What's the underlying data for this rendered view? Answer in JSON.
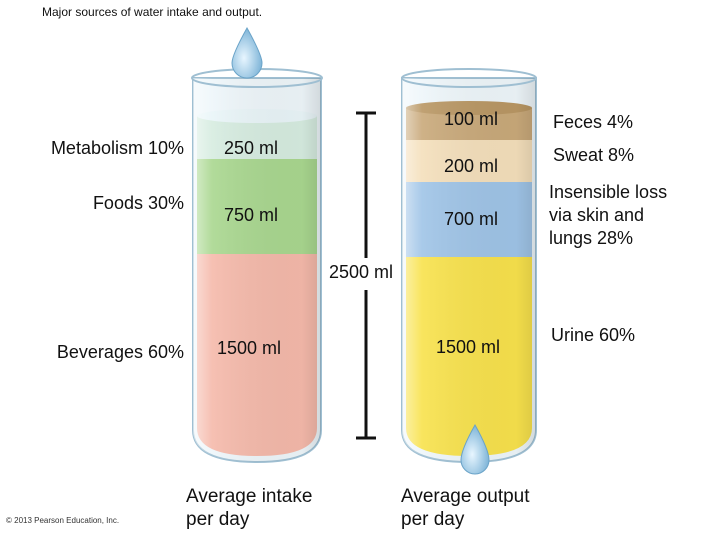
{
  "title": "Major sources of water intake and output.",
  "intake": {
    "caption_line1": "Average intake",
    "caption_line2": "per day",
    "segments": [
      {
        "label": "Metabolism 10%",
        "amount": "250 ml",
        "color": "#cfe8d3"
      },
      {
        "label": "Foods 30%",
        "amount": "750 ml",
        "color": "#a8d58e"
      },
      {
        "label": "Beverages 60%",
        "amount": "1500 ml",
        "color": "#f4b7a8"
      }
    ]
  },
  "output": {
    "caption_line1": "Average output",
    "caption_line2": "per day",
    "segments": [
      {
        "label": "Feces 4%",
        "amount": "100 ml",
        "color": "#c8a878"
      },
      {
        "label": "Sweat 8%",
        "amount": "200 ml",
        "color": "#f3ddb8"
      },
      {
        "label_line1": "Insensible loss",
        "label_line2": "via skin and",
        "label_line3": "lungs 28%",
        "amount": "700 ml",
        "color": "#9ec3e6"
      },
      {
        "label": "Urine 60%",
        "amount": "1500 ml",
        "color": "#f7e04a"
      }
    ]
  },
  "total": "2500 ml",
  "copyright": "© 2013 Pearson Education, Inc."
}
